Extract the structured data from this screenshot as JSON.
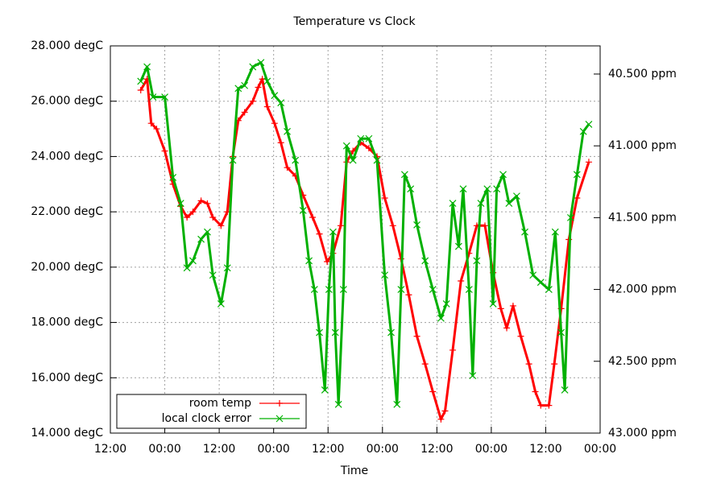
{
  "chart_data": {
    "type": "line",
    "title": "Temperature vs Clock",
    "xlabel": "Time",
    "xlim": [
      0,
      108
    ],
    "xticks": [
      {
        "value": 0,
        "label": "12:00"
      },
      {
        "value": 12,
        "label": "00:00"
      },
      {
        "value": 24,
        "label": "12:00"
      },
      {
        "value": 36,
        "label": "00:00"
      },
      {
        "value": 48,
        "label": "12:00"
      },
      {
        "value": 60,
        "label": "00:00"
      },
      {
        "value": 72,
        "label": "12:00"
      },
      {
        "value": 84,
        "label": "00:00"
      },
      {
        "value": 96,
        "label": "12:00"
      },
      {
        "value": 108,
        "label": "00:00"
      }
    ],
    "ylim": [
      14,
      28
    ],
    "yticks": [
      {
        "value": 14,
        "label": "14.000 degC"
      },
      {
        "value": 16,
        "label": "16.000 degC"
      },
      {
        "value": 18,
        "label": "18.000 degC"
      },
      {
        "value": 20,
        "label": "20.000 degC"
      },
      {
        "value": 22,
        "label": "22.000 degC"
      },
      {
        "value": 24,
        "label": "24.000 degC"
      },
      {
        "value": 26,
        "label": "26.000 degC"
      },
      {
        "value": 28,
        "label": "28.000 degC"
      }
    ],
    "y2lim": [
      43.0,
      40.304
    ],
    "y2ticks": [
      {
        "value": 40.5,
        "label": "40.500 ppm"
      },
      {
        "value": 41.0,
        "label": "41.000 ppm"
      },
      {
        "value": 41.5,
        "label": "41.500 ppm"
      },
      {
        "value": 42.0,
        "label": "42.000 ppm"
      },
      {
        "value": 42.5,
        "label": "42.500 ppm"
      },
      {
        "value": 43.0,
        "label": "43.000 ppm"
      }
    ],
    "grid": true,
    "legend": "bottom left",
    "series": [
      {
        "name": "room temp",
        "color": "#ff0000",
        "marker": "plus",
        "x": [
          6.7,
          8.1,
          9.0,
          10.2,
          12.0,
          13.8,
          15.5,
          16.9,
          18.2,
          20.0,
          21.4,
          22.6,
          24.4,
          25.8,
          27.0,
          28.2,
          29.6,
          31.4,
          32.6,
          33.5,
          34.6,
          36.2,
          37.6,
          39.0,
          40.8,
          42.5,
          44.6,
          46.1,
          47.8,
          49.1,
          50.8,
          52.1,
          53.5,
          55.2,
          57.0,
          58.8,
          60.5,
          62.3,
          64.1,
          65.8,
          67.6,
          69.4,
          71.1,
          72.9,
          73.8,
          75.5,
          77.3,
          79.1,
          80.8,
          82.6,
          84.4,
          86.1,
          87.4,
          88.8,
          90.5,
          92.3,
          93.7,
          94.9,
          96.7,
          97.9,
          99.4,
          101.1,
          102.9,
          105.5
        ],
        "values": [
          26.4,
          26.8,
          25.2,
          25.0,
          24.2,
          23.0,
          22.2,
          21.8,
          22.0,
          22.4,
          22.3,
          21.8,
          21.5,
          22.0,
          24.0,
          25.3,
          25.6,
          26.0,
          26.5,
          26.8,
          25.8,
          25.2,
          24.5,
          23.6,
          23.3,
          22.6,
          21.8,
          21.2,
          20.2,
          20.5,
          21.5,
          23.8,
          24.2,
          24.5,
          24.3,
          24.0,
          22.5,
          21.5,
          20.3,
          19.0,
          17.5,
          16.5,
          15.5,
          14.5,
          14.8,
          17.0,
          19.5,
          20.5,
          21.5,
          21.5,
          19.8,
          18.5,
          17.8,
          18.6,
          17.5,
          16.5,
          15.5,
          15.0,
          15.0,
          16.5,
          18.5,
          21.0,
          22.5,
          23.8
        ]
      },
      {
        "name": "local clock error",
        "color": "#00b000",
        "marker": "cross",
        "axis": "y2",
        "x": [
          6.7,
          8.1,
          9.4,
          12.0,
          13.8,
          15.5,
          16.9,
          18.2,
          20.0,
          21.4,
          22.6,
          24.4,
          25.8,
          27.0,
          28.2,
          29.6,
          31.4,
          33.2,
          34.6,
          36.2,
          37.6,
          39.0,
          40.8,
          42.5,
          43.8,
          45.0,
          46.1,
          47.3,
          48.2,
          49.1,
          49.6,
          50.3,
          51.4,
          52.1,
          53.5,
          55.2,
          57.0,
          58.8,
          60.5,
          61.9,
          63.2,
          64.1,
          64.9,
          66.2,
          67.6,
          69.4,
          71.1,
          72.9,
          74.1,
          75.5,
          76.8,
          77.8,
          79.1,
          79.9,
          80.8,
          81.7,
          83.1,
          84.4,
          85.2,
          86.6,
          87.9,
          89.6,
          91.4,
          93.2,
          94.9,
          96.7,
          98.1,
          99.4,
          100.2,
          101.5,
          102.9,
          104.3,
          105.5
        ],
        "values": [
          40.55,
          40.45,
          40.66,
          40.66,
          41.22,
          41.4,
          41.85,
          41.8,
          41.65,
          41.6,
          41.9,
          42.1,
          41.85,
          41.1,
          40.6,
          40.58,
          40.45,
          40.42,
          40.55,
          40.65,
          40.7,
          40.9,
          41.1,
          41.45,
          41.8,
          42.0,
          42.3,
          42.7,
          42.0,
          41.6,
          42.3,
          42.8,
          42.0,
          41.0,
          41.1,
          40.95,
          40.95,
          41.1,
          41.9,
          42.3,
          42.8,
          42.0,
          41.2,
          41.3,
          41.55,
          41.8,
          42.0,
          42.2,
          42.1,
          41.4,
          41.7,
          41.3,
          42.0,
          42.6,
          41.8,
          41.4,
          41.3,
          42.1,
          41.3,
          41.2,
          41.4,
          41.35,
          41.6,
          41.9,
          41.95,
          42.0,
          41.6,
          42.3,
          42.7,
          41.5,
          41.2,
          40.9,
          40.85
        ]
      }
    ]
  }
}
